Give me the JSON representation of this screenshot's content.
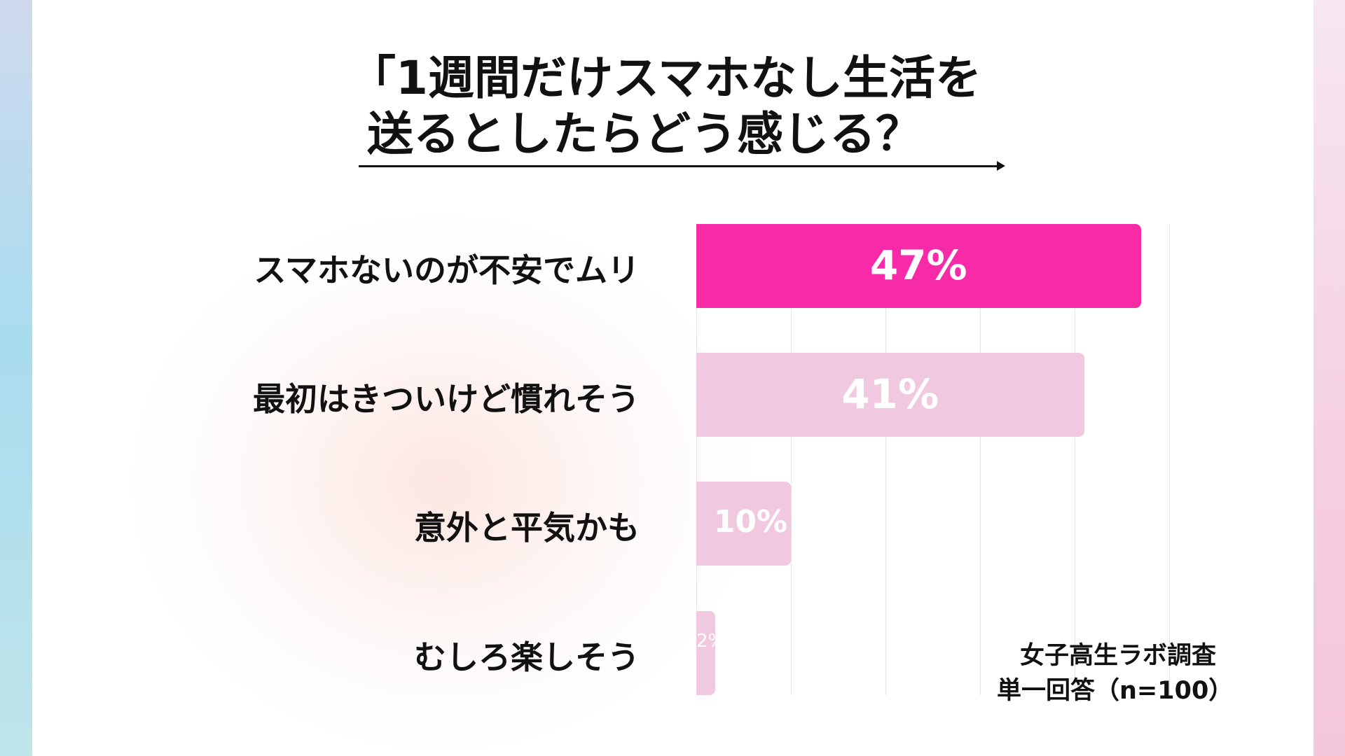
{
  "chart_data": {
    "type": "bar",
    "orientation": "horizontal",
    "title": [
      "「1週間だけスマホなし生活を",
      "送るとしたらどう感じる？"
    ],
    "categories": [
      "スマホないのが不安でムリ",
      "最初はきついけど慣れそう",
      "意外と平気かも",
      "むしろ楽しそう"
    ],
    "values": [
      47,
      41,
      10,
      2
    ],
    "value_labels": [
      "47%",
      "41%",
      "10%",
      "2%"
    ],
    "xlim": [
      0,
      50
    ],
    "grid": true,
    "unit": "%",
    "colors": [
      "#f72aa8",
      "#f0c8df",
      "#f0c8df",
      "#f0c8df"
    ],
    "notes": [
      "女子高生ラボ調査",
      "単一回答（n=100）"
    ]
  }
}
